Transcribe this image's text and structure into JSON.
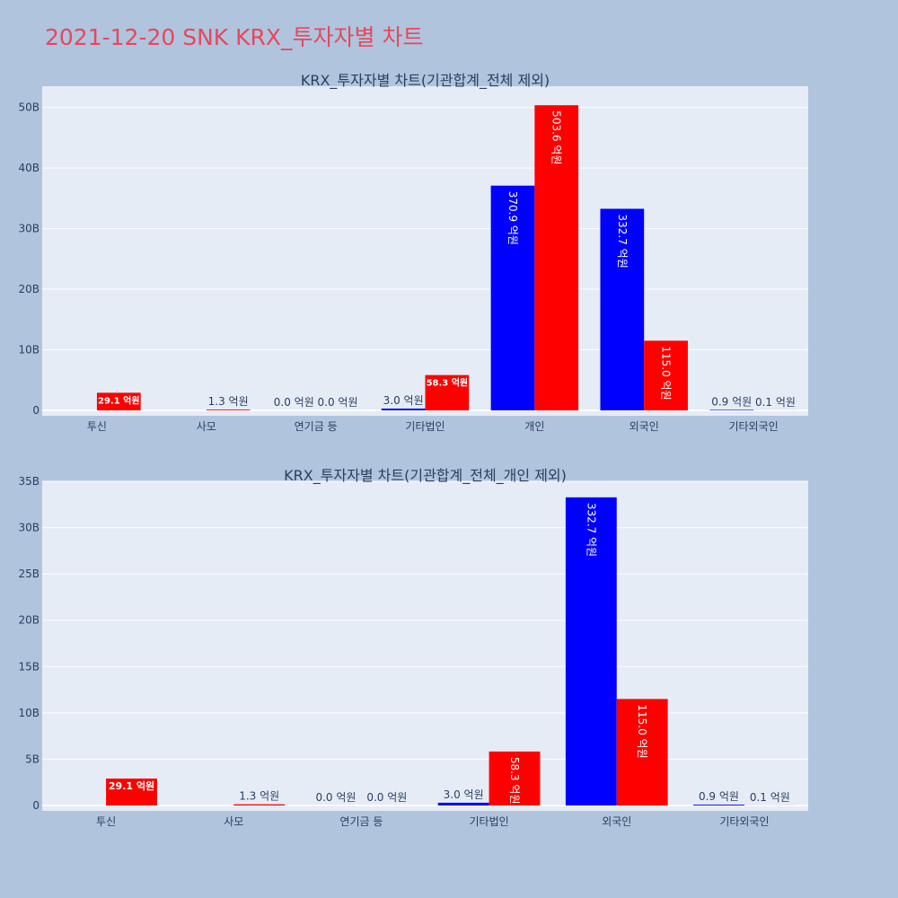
{
  "title": "2021-12-20 SNK KRX_투자자별 차트",
  "colors": {
    "buy": "#0000ff",
    "sell": "#ff0000",
    "plot_bg": "#e5ecf6",
    "page_bg": "#b0c4de",
    "title": "#e8475b"
  },
  "chart_data": [
    {
      "type": "bar",
      "title": "KRX_투자자별 차트(기관합계_전체 제외)",
      "categories": [
        "투신",
        "사모",
        "연기금 등",
        "기타법인",
        "개인",
        "외국인",
        "기타외국인"
      ],
      "series": [
        {
          "values": [
            0,
            0,
            0,
            0.3,
            37.09,
            33.27,
            0.09
          ],
          "labels": [
            "",
            "",
            "0.0 억원",
            "3.0 억원",
            "370.9 억원",
            "332.7 억원",
            "0.9 억원"
          ]
        },
        {
          "values": [
            2.91,
            0.13,
            0,
            5.83,
            50.36,
            11.5,
            0.01
          ],
          "labels": [
            "29.1 억원",
            "1.3 억원",
            "0.0 억원",
            "58.3 억원",
            "503.6 억원",
            "115.0 억원",
            "0.1 억원"
          ]
        }
      ],
      "ylim": [
        0,
        53.5
      ],
      "yticks": [
        0,
        10,
        20,
        30,
        40,
        50
      ],
      "ytick_labels": [
        "0",
        "10B",
        "20B",
        "30B",
        "40B",
        "50B"
      ],
      "grid": true
    },
    {
      "type": "bar",
      "title": "KRX_투자자별 차트(기관합계_전체_개인 제외)",
      "categories": [
        "투신",
        "사모",
        "연기금 등",
        "기타법인",
        "외국인",
        "기타외국인"
      ],
      "series": [
        {
          "values": [
            0,
            0,
            0,
            0.3,
            33.27,
            0.09
          ],
          "labels": [
            "",
            "",
            "0.0 억원",
            "3.0 억원",
            "332.7 억원",
            "0.9 억원"
          ]
        },
        {
          "values": [
            2.91,
            0.13,
            0,
            5.83,
            11.5,
            0.01
          ],
          "labels": [
            "29.1 억원",
            "1.3 억원",
            "0.0 억원",
            "58.3 억원",
            "115.0 억원",
            "0.1 억원"
          ]
        }
      ],
      "ylim": [
        0,
        35
      ],
      "yticks": [
        0,
        5,
        10,
        15,
        20,
        25,
        30,
        35
      ],
      "ytick_labels": [
        "0",
        "5B",
        "10B",
        "15B",
        "20B",
        "25B",
        "30B",
        "35B"
      ],
      "grid": true
    }
  ]
}
